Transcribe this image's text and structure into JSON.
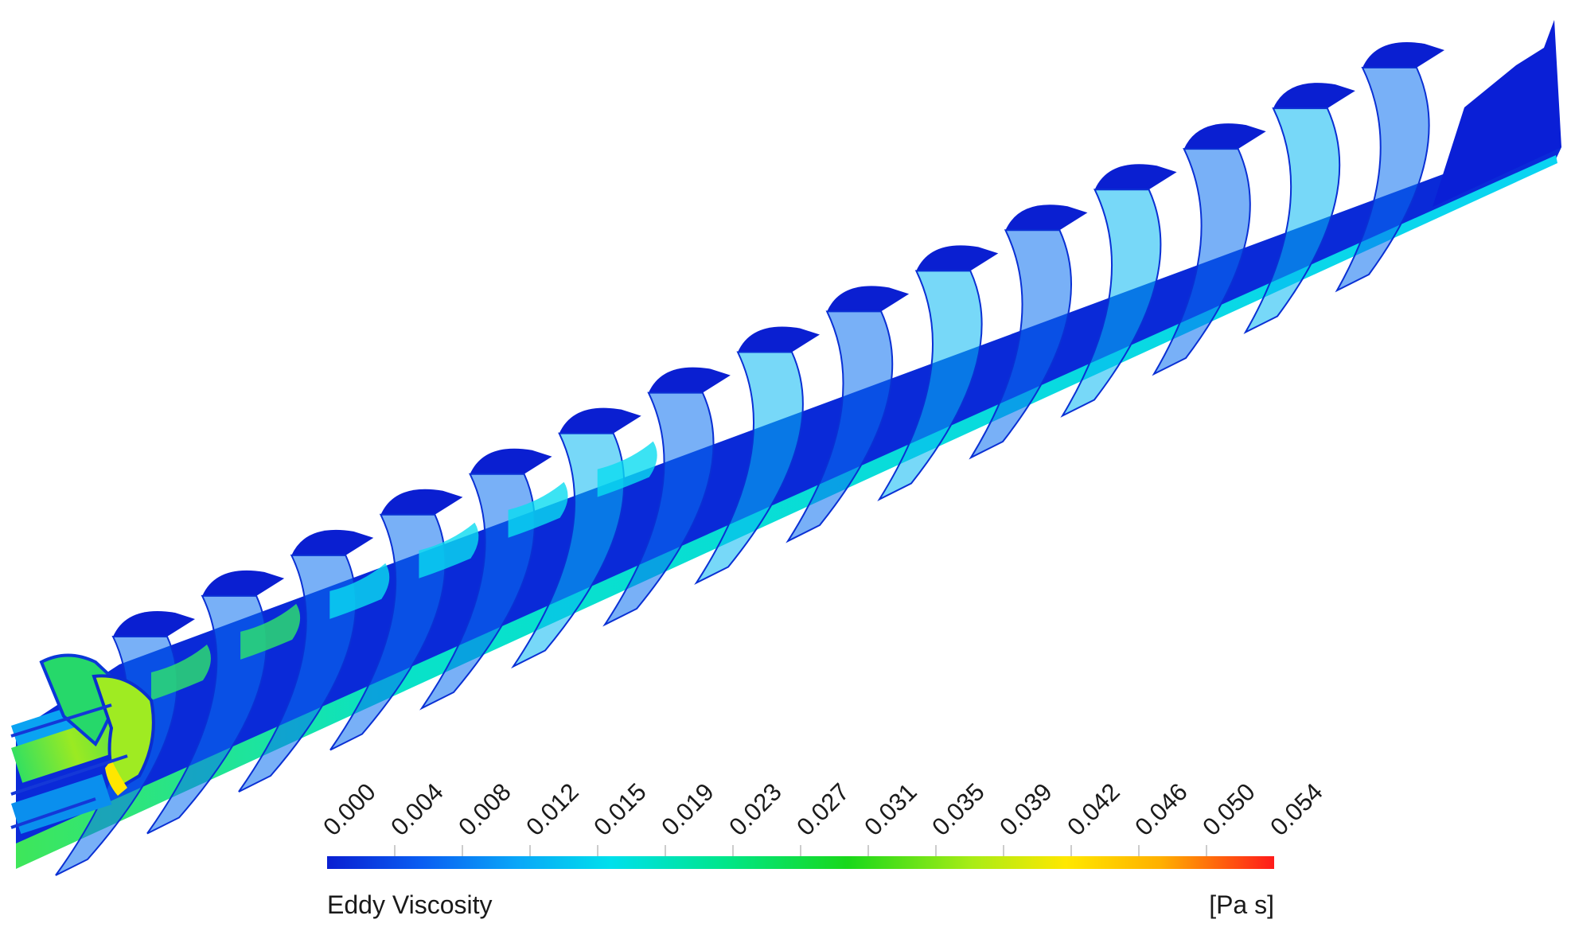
{
  "legend": {
    "title": "Eddy Viscosity",
    "unit": "[Pa s]",
    "ticks": [
      "0.000",
      "0.004",
      "0.008",
      "0.012",
      "0.015",
      "0.019",
      "0.023",
      "0.027",
      "0.031",
      "0.035",
      "0.039",
      "0.042",
      "0.046",
      "0.050",
      "0.054"
    ],
    "range": [
      0.0,
      0.054
    ],
    "colormap": [
      "#0a1fd1",
      "#0a5ef2",
      "#0aa6f8",
      "#00e8e8",
      "#00e87a",
      "#19d81a",
      "#a8ec16",
      "#ffef00",
      "#ffb000",
      "#ff6a00",
      "#ff1a1a"
    ]
  },
  "model": {
    "flights": 15,
    "colors": {
      "low": "#0a1fd1",
      "midlow": "#0a6ff0",
      "mid": "#08b8f2",
      "cyan": "#0adcf0",
      "green": "#2ee66a",
      "lime": "#a8ec16",
      "yellow": "#ffe600"
    }
  }
}
